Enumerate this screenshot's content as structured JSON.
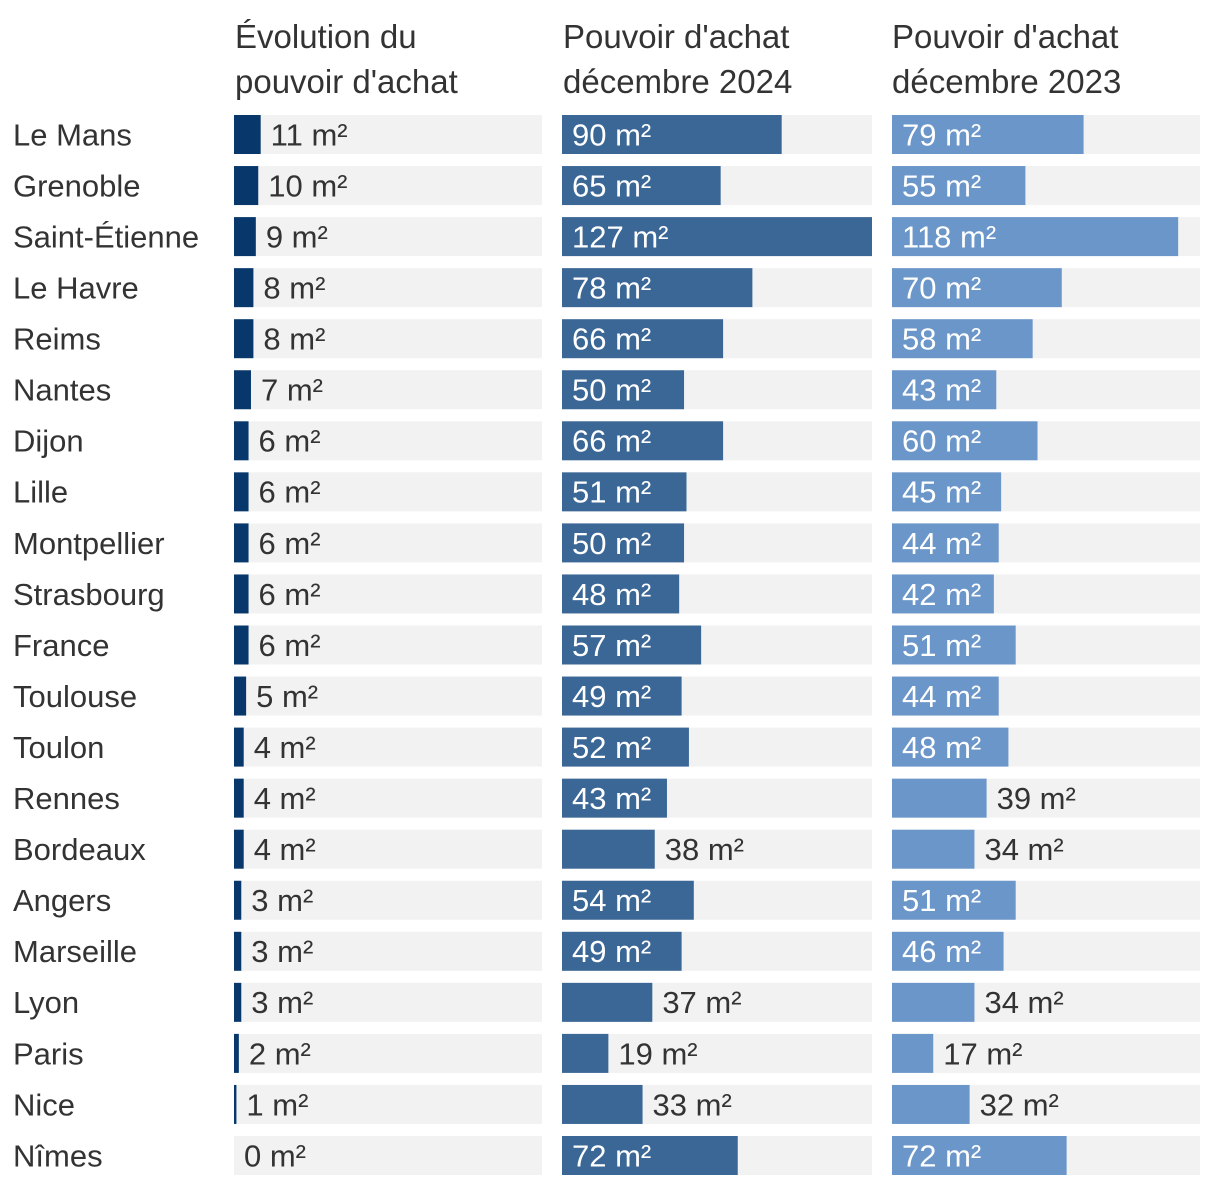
{
  "chart_data": {
    "type": "bar",
    "orientation": "horizontal",
    "unit": "m²",
    "categories": [
      "Le Mans",
      "Grenoble",
      "Saint-Étienne",
      "Le Havre",
      "Reims",
      "Nantes",
      "Dijon",
      "Lille",
      "Montpellier",
      "Strasbourg",
      "France",
      "Toulouse",
      "Toulon",
      "Rennes",
      "Bordeaux",
      "Angers",
      "Marseille",
      "Lyon",
      "Paris",
      "Nice",
      "Nîmes"
    ],
    "series": [
      {
        "name": "evolution",
        "title_line1": "Évolution du",
        "title_line2": "pouvoir d'achat",
        "color": "#08386b",
        "max": 127,
        "values": [
          11,
          10,
          9,
          8,
          8,
          7,
          6,
          6,
          6,
          6,
          6,
          5,
          4,
          4,
          4,
          3,
          3,
          3,
          2,
          1,
          0
        ]
      },
      {
        "name": "dec2024",
        "title_line1": "Pouvoir d'achat",
        "title_line2": "décembre 2024",
        "color": "#3b6796",
        "max": 127,
        "values": [
          90,
          65,
          127,
          78,
          66,
          50,
          66,
          51,
          50,
          48,
          57,
          49,
          52,
          43,
          38,
          54,
          49,
          37,
          19,
          33,
          72
        ]
      },
      {
        "name": "dec2023",
        "title_line1": "Pouvoir d'achat",
        "title_line2": "décembre 2023",
        "color": "#6b96c9",
        "max": 127,
        "values": [
          79,
          55,
          118,
          70,
          58,
          43,
          60,
          45,
          44,
          42,
          51,
          44,
          48,
          39,
          34,
          51,
          46,
          34,
          17,
          32,
          72
        ]
      }
    ]
  }
}
